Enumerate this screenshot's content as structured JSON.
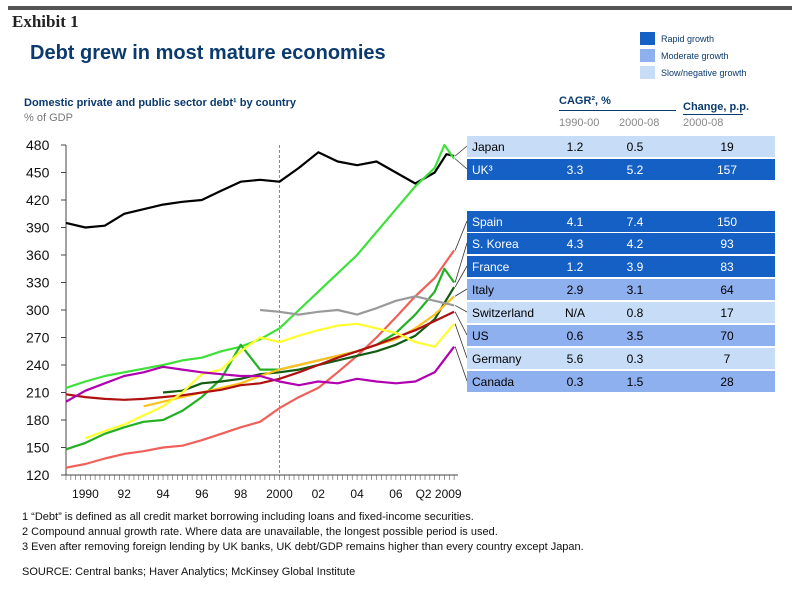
{
  "exhibit": "Exhibit 1",
  "title": "Debt grew in most mature economies",
  "legend": [
    {
      "label": "Rapid growth",
      "color": "#1560c4"
    },
    {
      "label": "Moderate growth",
      "color": "#8fb0ee"
    },
    {
      "label": "Slow/negative growth",
      "color": "#c7dcf7"
    }
  ],
  "table": {
    "cagr_header": "CAGR², %",
    "change_header": "Change, p.p.",
    "col1": "1990-00",
    "col2": "2000-08",
    "col3": "2000-08",
    "rows": [
      {
        "country": "Japan",
        "c1": "1.2",
        "c2": "0.5",
        "change": "19",
        "group": "slow",
        "line_color": "#000000",
        "top": 136
      },
      {
        "country": "UK³",
        "c1": "3.3",
        "c2": "5.2",
        "change": "157",
        "group": "rapid",
        "line_color": "#3ee03a",
        "top": 159
      },
      {
        "country": "Spain",
        "c1": "4.1",
        "c2": "7.4",
        "change": "150",
        "group": "rapid",
        "line_color": "#f0605a",
        "top": 211
      },
      {
        "country": "S. Korea",
        "c1": "4.3",
        "c2": "4.2",
        "change": "93",
        "group": "rapid",
        "line_color": "#23b023",
        "top": 233
      },
      {
        "country": "France",
        "c1": "1.2",
        "c2": "3.9",
        "change": "83",
        "group": "rapid",
        "line_color": "#125c12",
        "top": 256
      },
      {
        "country": "Italy",
        "c1": "2.9",
        "c2": "3.1",
        "change": "64",
        "group": "moderate",
        "line_color": "#ffc020",
        "top": 279
      },
      {
        "country": "Switzerland",
        "c1": "N/A",
        "c2": "0.8",
        "change": "17",
        "group": "slow",
        "line_color": "#9a9a9a",
        "top": 302
      },
      {
        "country": "US",
        "c1": "0.6",
        "c2": "3.5",
        "change": "70",
        "group": "moderate",
        "line_color": "#b01010",
        "top": 325
      },
      {
        "country": "Germany",
        "c1": "5.6",
        "c2": "0.3",
        "change": "7",
        "group": "slow",
        "line_color": "#ffff30",
        "top": 348
      },
      {
        "country": "Canada",
        "c1": "0.3",
        "c2": "1.5",
        "change": "28",
        "group": "moderate",
        "line_color": "#b000b0",
        "top": 371
      }
    ]
  },
  "notes": [
    "1 “Debt” is defined as all credit market borrowing including loans and fixed-income securities.",
    "2 Compound annual growth rate. Where data are unavailable, the longest possible period is used.",
    "3 Even after removing foreign lending by UK banks, UK debt/GDP remains higher than every country except Japan."
  ],
  "source": "SOURCE: Central banks; Haver Analytics; McKinsey Global Institute",
  "chart_data": {
    "type": "line",
    "subtitle": "Domestic private and public sector debt¹ by country",
    "ylabel": "% of GDP",
    "ylim": [
      120,
      480
    ],
    "yticks": [
      120,
      150,
      180,
      210,
      240,
      270,
      300,
      330,
      360,
      390,
      420,
      450,
      480
    ],
    "xlim": [
      1989,
      2009.2
    ],
    "xticks": [
      {
        "v": 1990,
        "label": "1990"
      },
      {
        "v": 1992,
        "label": "92"
      },
      {
        "v": 1994,
        "label": "94"
      },
      {
        "v": 1996,
        "label": "96"
      },
      {
        "v": 1998,
        "label": "98"
      },
      {
        "v": 2000,
        "label": "2000"
      },
      {
        "v": 2002,
        "label": "02"
      },
      {
        "v": 2004,
        "label": "04"
      },
      {
        "v": 2006,
        "label": "06"
      },
      {
        "v": 2008.2,
        "label": "Q2 2009"
      }
    ],
    "marker_year": 2000,
    "series": [
      {
        "name": "Japan",
        "color": "#000000",
        "points": [
          [
            1989,
            395
          ],
          [
            1990,
            390
          ],
          [
            1991,
            392
          ],
          [
            1992,
            405
          ],
          [
            1993,
            410
          ],
          [
            1994,
            415
          ],
          [
            1995,
            418
          ],
          [
            1996,
            420
          ],
          [
            1997,
            430
          ],
          [
            1998,
            440
          ],
          [
            1999,
            442
          ],
          [
            2000,
            440
          ],
          [
            2001,
            455
          ],
          [
            2002,
            472
          ],
          [
            2003,
            462
          ],
          [
            2004,
            458
          ],
          [
            2005,
            462
          ],
          [
            2006,
            450
          ],
          [
            2007,
            438
          ],
          [
            2008,
            450
          ],
          [
            2008.6,
            470
          ],
          [
            2009,
            468
          ]
        ]
      },
      {
        "name": "UK³",
        "color": "#3ee03a",
        "points": [
          [
            1989,
            215
          ],
          [
            1990,
            222
          ],
          [
            1991,
            228
          ],
          [
            1992,
            232
          ],
          [
            1993,
            236
          ],
          [
            1994,
            240
          ],
          [
            1995,
            245
          ],
          [
            1996,
            248
          ],
          [
            1997,
            255
          ],
          [
            1998,
            260
          ],
          [
            1999,
            268
          ],
          [
            2000,
            280
          ],
          [
            2001,
            300
          ],
          [
            2002,
            320
          ],
          [
            2003,
            340
          ],
          [
            2004,
            360
          ],
          [
            2005,
            385
          ],
          [
            2006,
            410
          ],
          [
            2007,
            435
          ],
          [
            2008,
            455
          ],
          [
            2008.5,
            480
          ],
          [
            2009,
            465
          ]
        ]
      },
      {
        "name": "Spain",
        "color": "#f0605a",
        "points": [
          [
            1989,
            128
          ],
          [
            1990,
            132
          ],
          [
            1991,
            138
          ],
          [
            1992,
            143
          ],
          [
            1993,
            146
          ],
          [
            1994,
            150
          ],
          [
            1995,
            152
          ],
          [
            1996,
            158
          ],
          [
            1997,
            165
          ],
          [
            1998,
            172
          ],
          [
            1999,
            178
          ],
          [
            2000,
            193
          ],
          [
            2001,
            205
          ],
          [
            2002,
            215
          ],
          [
            2003,
            232
          ],
          [
            2004,
            250
          ],
          [
            2005,
            270
          ],
          [
            2006,
            292
          ],
          [
            2007,
            315
          ],
          [
            2008,
            335
          ],
          [
            2009,
            365
          ]
        ]
      },
      {
        "name": "S. Korea",
        "color": "#23b023",
        "points": [
          [
            1989,
            148
          ],
          [
            1990,
            155
          ],
          [
            1991,
            165
          ],
          [
            1992,
            172
          ],
          [
            1993,
            178
          ],
          [
            1994,
            180
          ],
          [
            1995,
            190
          ],
          [
            1996,
            205
          ],
          [
            1997,
            225
          ],
          [
            1998,
            262
          ],
          [
            1999,
            235
          ],
          [
            2000,
            235
          ],
          [
            2001,
            240
          ],
          [
            2002,
            245
          ],
          [
            2003,
            250
          ],
          [
            2004,
            255
          ],
          [
            2005,
            262
          ],
          [
            2006,
            275
          ],
          [
            2007,
            295
          ],
          [
            2008,
            320
          ],
          [
            2008.5,
            345
          ],
          [
            2009,
            330
          ]
        ]
      },
      {
        "name": "France",
        "color": "#125c12",
        "points": [
          [
            1994,
            210
          ],
          [
            1995,
            212
          ],
          [
            1996,
            220
          ],
          [
            1997,
            222
          ],
          [
            1998,
            225
          ],
          [
            1999,
            230
          ],
          [
            2000,
            232
          ],
          [
            2001,
            235
          ],
          [
            2002,
            240
          ],
          [
            2003,
            245
          ],
          [
            2004,
            250
          ],
          [
            2005,
            255
          ],
          [
            2006,
            262
          ],
          [
            2007,
            272
          ],
          [
            2008,
            290
          ],
          [
            2009,
            325
          ]
        ]
      },
      {
        "name": "Italy",
        "color": "#ffc020",
        "points": [
          [
            1993,
            195
          ],
          [
            1994,
            200
          ],
          [
            1995,
            205
          ],
          [
            1996,
            210
          ],
          [
            1997,
            215
          ],
          [
            1998,
            220
          ],
          [
            1999,
            228
          ],
          [
            2000,
            235
          ],
          [
            2001,
            240
          ],
          [
            2002,
            245
          ],
          [
            2003,
            250
          ],
          [
            2004,
            255
          ],
          [
            2005,
            262
          ],
          [
            2006,
            268
          ],
          [
            2007,
            280
          ],
          [
            2008,
            295
          ],
          [
            2009,
            315
          ]
        ]
      },
      {
        "name": "Switzerland",
        "color": "#9a9a9a",
        "points": [
          [
            1999,
            300
          ],
          [
            2000,
            298
          ],
          [
            2001,
            295
          ],
          [
            2002,
            298
          ],
          [
            2003,
            300
          ],
          [
            2004,
            295
          ],
          [
            2005,
            302
          ],
          [
            2006,
            310
          ],
          [
            2007,
            315
          ],
          [
            2008,
            310
          ],
          [
            2009,
            305
          ]
        ]
      },
      {
        "name": "US",
        "color": "#b01010",
        "points": [
          [
            1989,
            208
          ],
          [
            1990,
            205
          ],
          [
            1991,
            203
          ],
          [
            1992,
            202
          ],
          [
            1993,
            203
          ],
          [
            1994,
            205
          ],
          [
            1995,
            207
          ],
          [
            1996,
            210
          ],
          [
            1997,
            213
          ],
          [
            1998,
            218
          ],
          [
            1999,
            220
          ],
          [
            2000,
            225
          ],
          [
            2001,
            232
          ],
          [
            2002,
            240
          ],
          [
            2003,
            248
          ],
          [
            2004,
            255
          ],
          [
            2005,
            262
          ],
          [
            2006,
            270
          ],
          [
            2007,
            278
          ],
          [
            2008,
            288
          ],
          [
            2009,
            298
          ]
        ]
      },
      {
        "name": "Germany",
        "color": "#ffff30",
        "points": [
          [
            1990,
            160
          ],
          [
            1991,
            168
          ],
          [
            1992,
            175
          ],
          [
            1993,
            185
          ],
          [
            1994,
            195
          ],
          [
            1995,
            210
          ],
          [
            1996,
            230
          ],
          [
            1997,
            235
          ],
          [
            1998,
            255
          ],
          [
            1999,
            270
          ],
          [
            2000,
            265
          ],
          [
            2001,
            272
          ],
          [
            2002,
            278
          ],
          [
            2003,
            283
          ],
          [
            2004,
            285
          ],
          [
            2005,
            280
          ],
          [
            2006,
            275
          ],
          [
            2007,
            265
          ],
          [
            2008,
            260
          ],
          [
            2009,
            285
          ]
        ]
      },
      {
        "name": "Canada",
        "color": "#b000b0",
        "points": [
          [
            1989,
            200
          ],
          [
            1990,
            212
          ],
          [
            1991,
            220
          ],
          [
            1992,
            228
          ],
          [
            1993,
            232
          ],
          [
            1994,
            238
          ],
          [
            1995,
            235
          ],
          [
            1996,
            232
          ],
          [
            1997,
            230
          ],
          [
            1998,
            228
          ],
          [
            1999,
            228
          ],
          [
            2000,
            222
          ],
          [
            2001,
            218
          ],
          [
            2002,
            222
          ],
          [
            2003,
            220
          ],
          [
            2004,
            225
          ],
          [
            2005,
            222
          ],
          [
            2006,
            220
          ],
          [
            2007,
            222
          ],
          [
            2008,
            232
          ],
          [
            2009,
            260
          ]
        ]
      }
    ]
  }
}
